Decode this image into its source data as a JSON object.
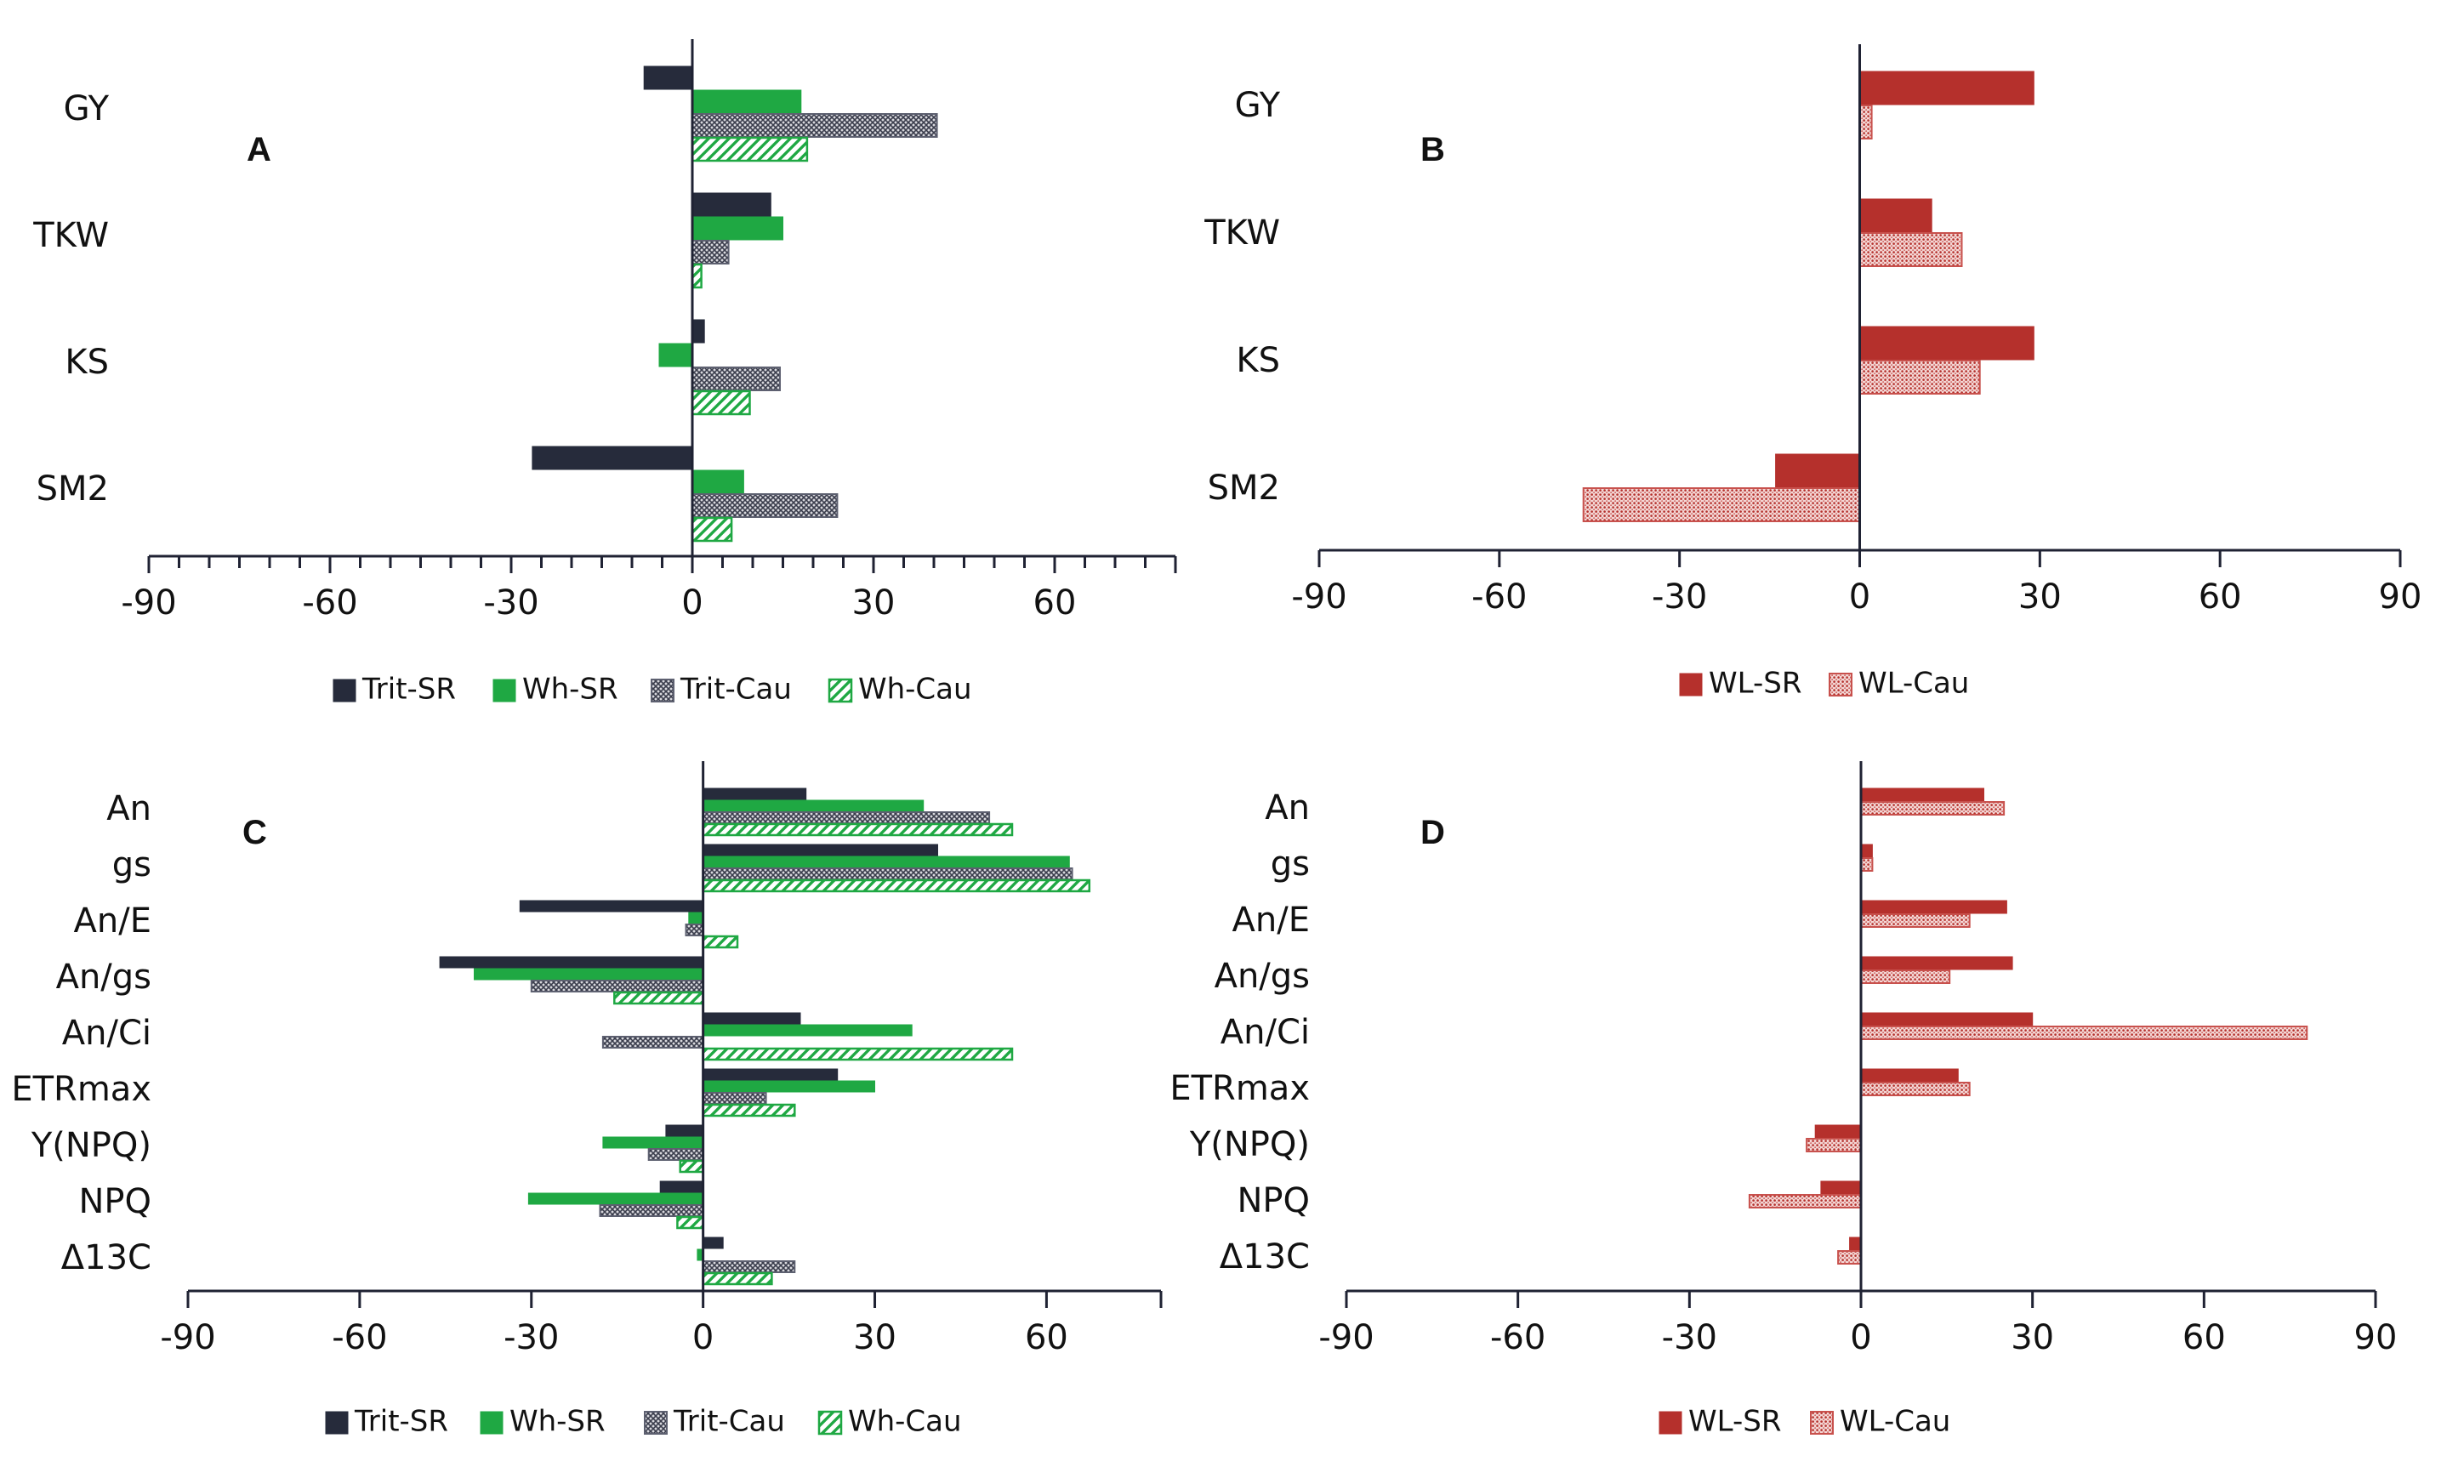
{
  "colors": {
    "trit_sr": "#262b3b",
    "wh_sr": "#1fa843",
    "trit_cau": "#5d6070",
    "wh_cau": "#1fa843",
    "wl_sr": "#b5302c",
    "wl_cau": "#c8514d",
    "axis": "#1f2233"
  },
  "chart_data": [
    {
      "type": "bar",
      "orientation": "horizontal",
      "panel_label": "A",
      "categories": [
        "GY",
        "TKW",
        "KS",
        "SM2"
      ],
      "xlim": [
        -90,
        80
      ],
      "xticks": [
        -90,
        -60,
        -30,
        0,
        30,
        60
      ],
      "series": [
        {
          "name": "Trit-SR",
          "style": "solid-dark",
          "values": [
            -8,
            13,
            2,
            -26.5
          ]
        },
        {
          "name": "Wh-SR",
          "style": "solid-green",
          "values": [
            18,
            15,
            -5.5,
            8.5
          ]
        },
        {
          "name": "Trit-Cau",
          "style": "cross-dark",
          "values": [
            40.5,
            6,
            14.5,
            24
          ]
        },
        {
          "name": "Wh-Cau",
          "style": "diag-green",
          "values": [
            19,
            1.5,
            9.5,
            6.5
          ]
        }
      ]
    },
    {
      "type": "bar",
      "orientation": "horizontal",
      "panel_label": "B",
      "categories": [
        "GY",
        "TKW",
        "KS",
        "SM2"
      ],
      "xlim": [
        -90,
        90
      ],
      "xticks": [
        -90,
        -60,
        -30,
        0,
        30,
        60,
        90
      ],
      "series": [
        {
          "name": "WL-SR",
          "style": "solid-red",
          "values": [
            29,
            12,
            29,
            -14
          ]
        },
        {
          "name": "WL-Cau",
          "style": "dots-red",
          "values": [
            2,
            17,
            20,
            -46
          ]
        }
      ]
    },
    {
      "type": "bar",
      "orientation": "horizontal",
      "panel_label": "C",
      "categories": [
        "An",
        "gs",
        "An/E",
        "An/gs",
        "An/Ci",
        "ETRmax",
        "Y(NPQ)",
        "NPQ",
        "Δ13C"
      ],
      "xlim": [
        -90,
        80
      ],
      "xticks": [
        -90,
        -60,
        -30,
        0,
        30,
        60
      ],
      "series": [
        {
          "name": "Trit-SR",
          "style": "solid-dark",
          "values": [
            18,
            41,
            -32,
            -46,
            17,
            23.5,
            -6.5,
            -7.5,
            3.5
          ]
        },
        {
          "name": "Wh-SR",
          "style": "solid-green",
          "values": [
            38.5,
            64,
            -2.5,
            -40,
            36.5,
            30,
            -17.5,
            -30.5,
            -1
          ]
        },
        {
          "name": "Trit-Cau",
          "style": "cross-dark",
          "values": [
            50,
            64.5,
            -3,
            -30,
            -17.5,
            11,
            -9.5,
            -18,
            16
          ]
        },
        {
          "name": "Wh-Cau",
          "style": "diag-green",
          "values": [
            54,
            67.5,
            6,
            -15.5,
            54,
            16,
            -4,
            -4.5,
            12
          ]
        }
      ]
    },
    {
      "type": "bar",
      "orientation": "horizontal",
      "panel_label": "D",
      "categories": [
        "An",
        "gs",
        "An/E",
        "An/gs",
        "An/Ci",
        "ETRmax",
        "Y(NPQ)",
        "NPQ",
        "Δ13C"
      ],
      "xlim": [
        -90,
        90
      ],
      "xticks": [
        -90,
        -60,
        -30,
        0,
        30,
        60,
        90
      ],
      "series": [
        {
          "name": "WL-SR",
          "style": "solid-red",
          "values": [
            21.5,
            2,
            25.5,
            26.5,
            30,
            17,
            -8,
            -7,
            -2
          ]
        },
        {
          "name": "WL-Cau",
          "style": "dots-red",
          "values": [
            25,
            2,
            19,
            15.5,
            78,
            19,
            -9.5,
            -19.5,
            -4
          ]
        }
      ]
    }
  ]
}
